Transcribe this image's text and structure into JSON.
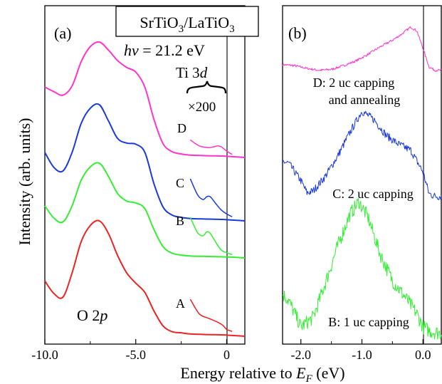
{
  "figure": {
    "ylabel": "Intensity (arb. units)",
    "xlabel_main": "Energy relative to ",
    "xlabel_sym": "E",
    "xlabel_sub": "F",
    "xlabel_unit": " (eV)"
  },
  "panel_a": {
    "tag": "(a)",
    "title_main": "SrTiO",
    "title_sub1": "3",
    "title_mid": "/LaTiO",
    "title_sub2": "3",
    "photon_sym": "hν",
    "photon_value": " = 21.2 eV",
    "ti_main": "Ti 3",
    "ti_sub": "d",
    "magnification": "×200",
    "o2p_main": "O 2",
    "o2p_sub": "p",
    "ticks": [
      "-10.0",
      "-5.0",
      "0"
    ]
  },
  "panel_b": {
    "tag": "(b)",
    "ticks": [
      "-2.0",
      "-1.0",
      "0.0"
    ],
    "labels": {
      "D1": "D: 2 uc capping",
      "D2": "and annealing",
      "C": "C: 2 uc capping",
      "B": "B: 1 uc capping"
    }
  },
  "chart_data": [
    {
      "panel": "a",
      "type": "line",
      "title": "SrTiO3/LaTiO3",
      "annotation": "hν = 21.2 eV",
      "xlabel": "Energy relative to EF (eV)",
      "ylabel": "Intensity (arb. units)",
      "xlim": [
        -10.0,
        1.0
      ],
      "xticks": [
        -10.0,
        -5.0,
        0
      ],
      "vertical_line_at": 0,
      "series": [
        {
          "name": "D",
          "color": "#ff33cc",
          "x": [
            -10.0,
            -9.5,
            -9.0,
            -8.5,
            -8.0,
            -7.5,
            -7.0,
            -6.5,
            -6.0,
            -5.5,
            -5.0,
            -4.5,
            -4.0,
            -3.5,
            -3.0,
            -2.5,
            -2.0,
            -1.0,
            0.0,
            1.0
          ],
          "y": [
            0.61,
            0.57,
            0.54,
            0.62,
            0.83,
            0.96,
            1.0,
            0.93,
            0.84,
            0.78,
            0.74,
            0.61,
            0.33,
            0.12,
            0.05,
            0.03,
            0.02,
            0.015,
            0.01,
            0.0
          ]
        },
        {
          "name": "C",
          "color": "#1a3adb",
          "x": [
            -10.0,
            -9.5,
            -9.0,
            -8.5,
            -8.0,
            -7.5,
            -7.0,
            -6.5,
            -6.0,
            -5.5,
            -5.0,
            -4.5,
            -4.0,
            -3.5,
            -3.0,
            -2.5,
            -2.0,
            -1.0,
            0.0,
            1.0
          ],
          "y": [
            0.59,
            0.46,
            0.43,
            0.59,
            0.84,
            0.97,
            1.0,
            0.86,
            0.71,
            0.67,
            0.66,
            0.59,
            0.32,
            0.12,
            0.05,
            0.03,
            0.02,
            0.015,
            0.01,
            0.0
          ]
        },
        {
          "name": "B",
          "color": "#33ee33",
          "x": [
            -10.0,
            -9.5,
            -9.0,
            -8.5,
            -8.0,
            -7.5,
            -7.0,
            -6.5,
            -6.0,
            -5.5,
            -5.0,
            -4.5,
            -4.0,
            -3.5,
            -3.0,
            -2.5,
            -2.0,
            -1.0,
            0.0,
            1.0
          ],
          "y": [
            0.55,
            0.42,
            0.38,
            0.55,
            0.82,
            0.96,
            1.0,
            0.86,
            0.68,
            0.6,
            0.58,
            0.52,
            0.3,
            0.12,
            0.05,
            0.03,
            0.02,
            0.015,
            0.01,
            0.0
          ]
        },
        {
          "name": "A",
          "color": "#ee2222",
          "x": [
            -10.0,
            -9.5,
            -9.0,
            -8.5,
            -8.0,
            -7.5,
            -7.0,
            -6.5,
            -6.0,
            -5.5,
            -5.0,
            -4.5,
            -4.0,
            -3.5,
            -3.0,
            -2.5,
            -2.0,
            -1.0,
            0.0,
            1.0
          ],
          "y": [
            0.48,
            0.37,
            0.34,
            0.55,
            0.82,
            0.96,
            1.0,
            0.89,
            0.7,
            0.55,
            0.46,
            0.38,
            0.22,
            0.09,
            0.04,
            0.03,
            0.02,
            0.015,
            0.01,
            0.0
          ]
        }
      ],
      "inset_series_x200": [
        {
          "name": "D",
          "color": "#ff33cc",
          "x": [
            -2.0,
            -1.5,
            -1.0,
            -0.7,
            -0.5,
            -0.3,
            0.0,
            0.3
          ],
          "y": [
            0.9,
            0.55,
            0.45,
            0.5,
            0.55,
            0.5,
            0.25,
            0.05
          ]
        },
        {
          "name": "C",
          "color": "#1a3adb",
          "x": [
            -2.0,
            -1.6,
            -1.3,
            -1.1,
            -0.9,
            -0.6,
            -0.3,
            0.0,
            0.3
          ],
          "y": [
            1.0,
            0.6,
            0.48,
            0.55,
            0.55,
            0.38,
            0.22,
            0.12,
            0.05
          ]
        },
        {
          "name": "B",
          "color": "#33ee33",
          "x": [
            -2.0,
            -1.6,
            -1.3,
            -1.1,
            -0.9,
            -0.6,
            -0.3,
            0.0,
            0.3
          ],
          "y": [
            1.0,
            0.6,
            0.52,
            0.62,
            0.58,
            0.35,
            0.15,
            0.08,
            0.03
          ]
        },
        {
          "name": "A",
          "color": "#ee2222",
          "x": [
            -2.0,
            -1.5,
            -1.0,
            -0.5,
            -0.2,
            0.0,
            0.3
          ],
          "y": [
            1.0,
            0.55,
            0.42,
            0.3,
            0.2,
            0.08,
            0.02
          ]
        }
      ]
    },
    {
      "panel": "b",
      "type": "line",
      "xlabel": "Energy relative to EF (eV)",
      "ylabel": "Intensity (arb. units)",
      "xlim": [
        -2.3,
        0.3
      ],
      "xticks": [
        -2.0,
        -1.0,
        0.0
      ],
      "vertical_line_at": 0.0,
      "series": [
        {
          "name": "D: 2 uc capping and annealing",
          "color": "#ff33cc",
          "x": [
            -2.3,
            -2.1,
            -1.9,
            -1.7,
            -1.5,
            -1.3,
            -1.1,
            -0.9,
            -0.7,
            -0.5,
            -0.35,
            -0.2,
            -0.1,
            0.0,
            0.1,
            0.2,
            0.3
          ],
          "y": [
            0.2,
            0.18,
            0.12,
            0.08,
            0.1,
            0.18,
            0.28,
            0.42,
            0.58,
            0.72,
            0.85,
            1.0,
            0.92,
            0.55,
            0.15,
            0.08,
            0.08
          ]
        },
        {
          "name": "C: 2 uc capping",
          "color": "#1a3adb",
          "x": [
            -2.3,
            -2.2,
            -2.0,
            -1.9,
            -1.8,
            -1.6,
            -1.4,
            -1.2,
            -1.0,
            -0.8,
            -0.6,
            -0.4,
            -0.2,
            0.0,
            0.1,
            0.2,
            0.3
          ],
          "y": [
            0.42,
            0.4,
            0.2,
            0.06,
            0.08,
            0.25,
            0.48,
            0.75,
            1.0,
            0.9,
            0.72,
            0.62,
            0.55,
            0.3,
            0.05,
            0.02,
            0.02
          ]
        },
        {
          "name": "B: 1 uc capping",
          "color": "#33ee33",
          "x": [
            -2.3,
            -2.2,
            -2.1,
            -2.0,
            -1.8,
            -1.6,
            -1.4,
            -1.2,
            -1.05,
            -0.9,
            -0.7,
            -0.5,
            -0.3,
            -0.1,
            0.0,
            0.1,
            0.3
          ],
          "y": [
            0.3,
            0.25,
            0.15,
            0.05,
            0.12,
            0.38,
            0.66,
            0.9,
            1.0,
            0.88,
            0.6,
            0.4,
            0.28,
            0.15,
            0.05,
            0.02,
            0.0
          ]
        }
      ]
    }
  ]
}
